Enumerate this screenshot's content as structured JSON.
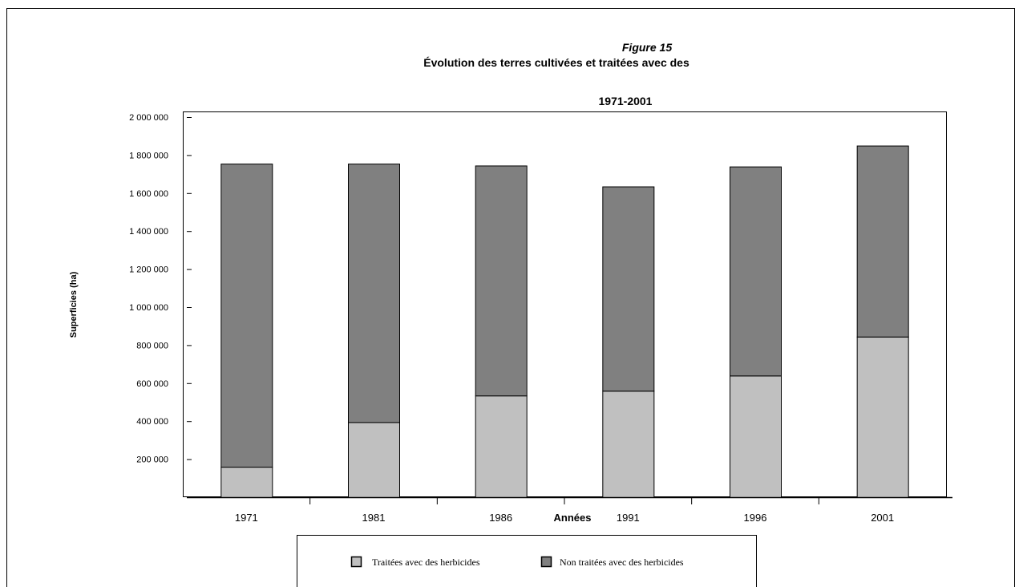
{
  "chart_data": {
    "type": "bar",
    "stacked": true,
    "figure_label": "Figure 15",
    "title": "Évolution des terres cultivées et traitées avec des",
    "subtitle": "1971-2001",
    "xlabel": "Années",
    "ylabel": "Superficies (ha)",
    "ylim": [
      0,
      2000000
    ],
    "yticks": [
      200000,
      400000,
      600000,
      800000,
      1000000,
      1200000,
      1400000,
      1600000,
      1800000,
      2000000
    ],
    "ytick_labels": [
      "200 000",
      "400 000",
      "600 000",
      "800 000",
      "1 000 000",
      "1 200 000",
      "1 400 000",
      "1 600 000",
      "1 800 000",
      "2 000 000"
    ],
    "categories": [
      "1971",
      "1981",
      "1986",
      "1991",
      "1996",
      "2001"
    ],
    "series": [
      {
        "name": "Traitées avec des herbicides",
        "color": "#c0c0c0",
        "values": [
          160000,
          395000,
          535000,
          560000,
          640000,
          845000
        ]
      },
      {
        "name": "Non traitées avec des herbicides",
        "color": "#808080",
        "values": [
          1595000,
          1360000,
          1210000,
          1075000,
          1100000,
          1005000
        ]
      }
    ],
    "grid": false,
    "legend_position": "bottom"
  }
}
